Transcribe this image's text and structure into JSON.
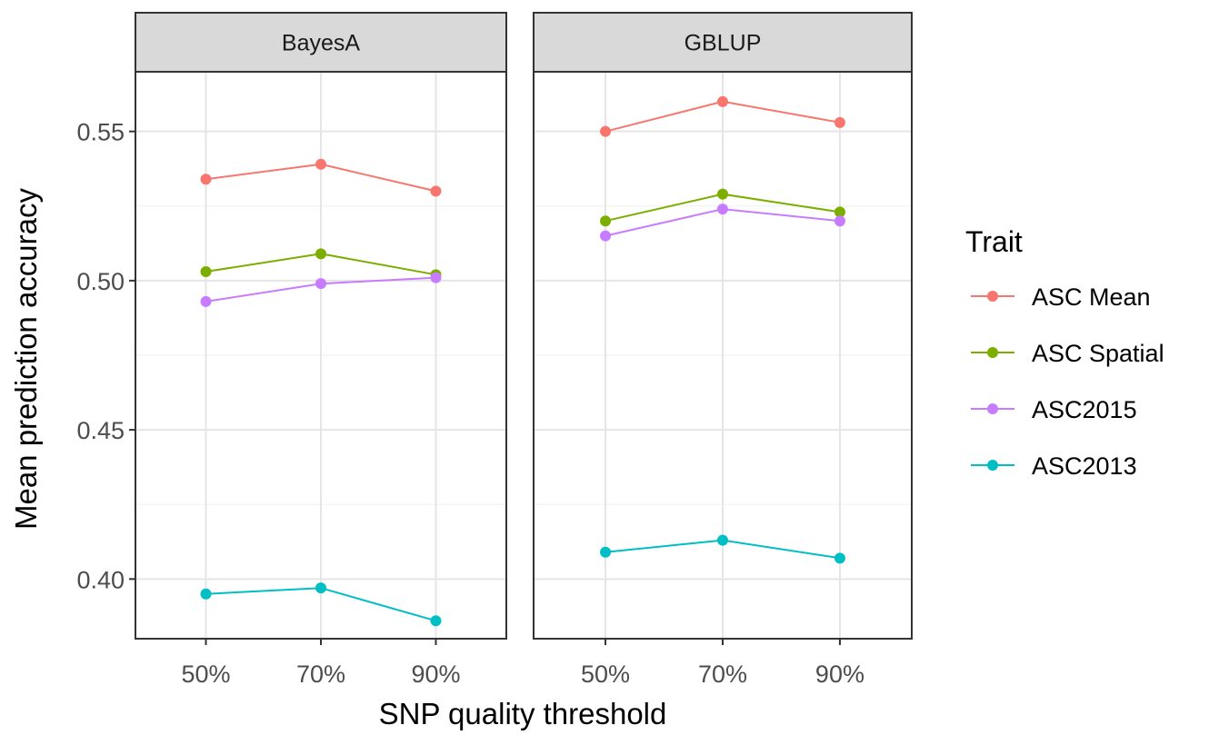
{
  "chart_data": {
    "type": "line",
    "facets": [
      "BayesA",
      "GBLUP"
    ],
    "categories": [
      "50%",
      "70%",
      "90%"
    ],
    "xlabel": "SNP quality threshold",
    "ylabel": "Mean prediction accuracy",
    "ylim": [
      0.38,
      0.57
    ],
    "yticks": [
      0.4,
      0.45,
      0.5,
      0.55
    ],
    "ytick_labels": [
      "0.40",
      "0.45",
      "0.50",
      "0.55"
    ],
    "legend_title": "Trait",
    "legend_position": "right",
    "grid": true,
    "series": [
      {
        "name": "ASC Mean",
        "color": "#F8766D",
        "values": {
          "BayesA": [
            0.534,
            0.539,
            0.53
          ],
          "GBLUP": [
            0.55,
            0.56,
            0.553
          ]
        }
      },
      {
        "name": "ASC Spatial",
        "color": "#7CAE00",
        "values": {
          "BayesA": [
            0.503,
            0.509,
            0.502
          ],
          "GBLUP": [
            0.52,
            0.529,
            0.523
          ]
        }
      },
      {
        "name": "ASC2015",
        "color": "#C77CFF",
        "values": {
          "BayesA": [
            0.493,
            0.499,
            0.501
          ],
          "GBLUP": [
            0.515,
            0.524,
            0.52
          ]
        }
      },
      {
        "name": "ASC2013",
        "color": "#00BFC4",
        "values": {
          "BayesA": [
            0.395,
            0.397,
            0.386
          ],
          "GBLUP": [
            0.409,
            0.413,
            0.407
          ]
        }
      }
    ]
  }
}
